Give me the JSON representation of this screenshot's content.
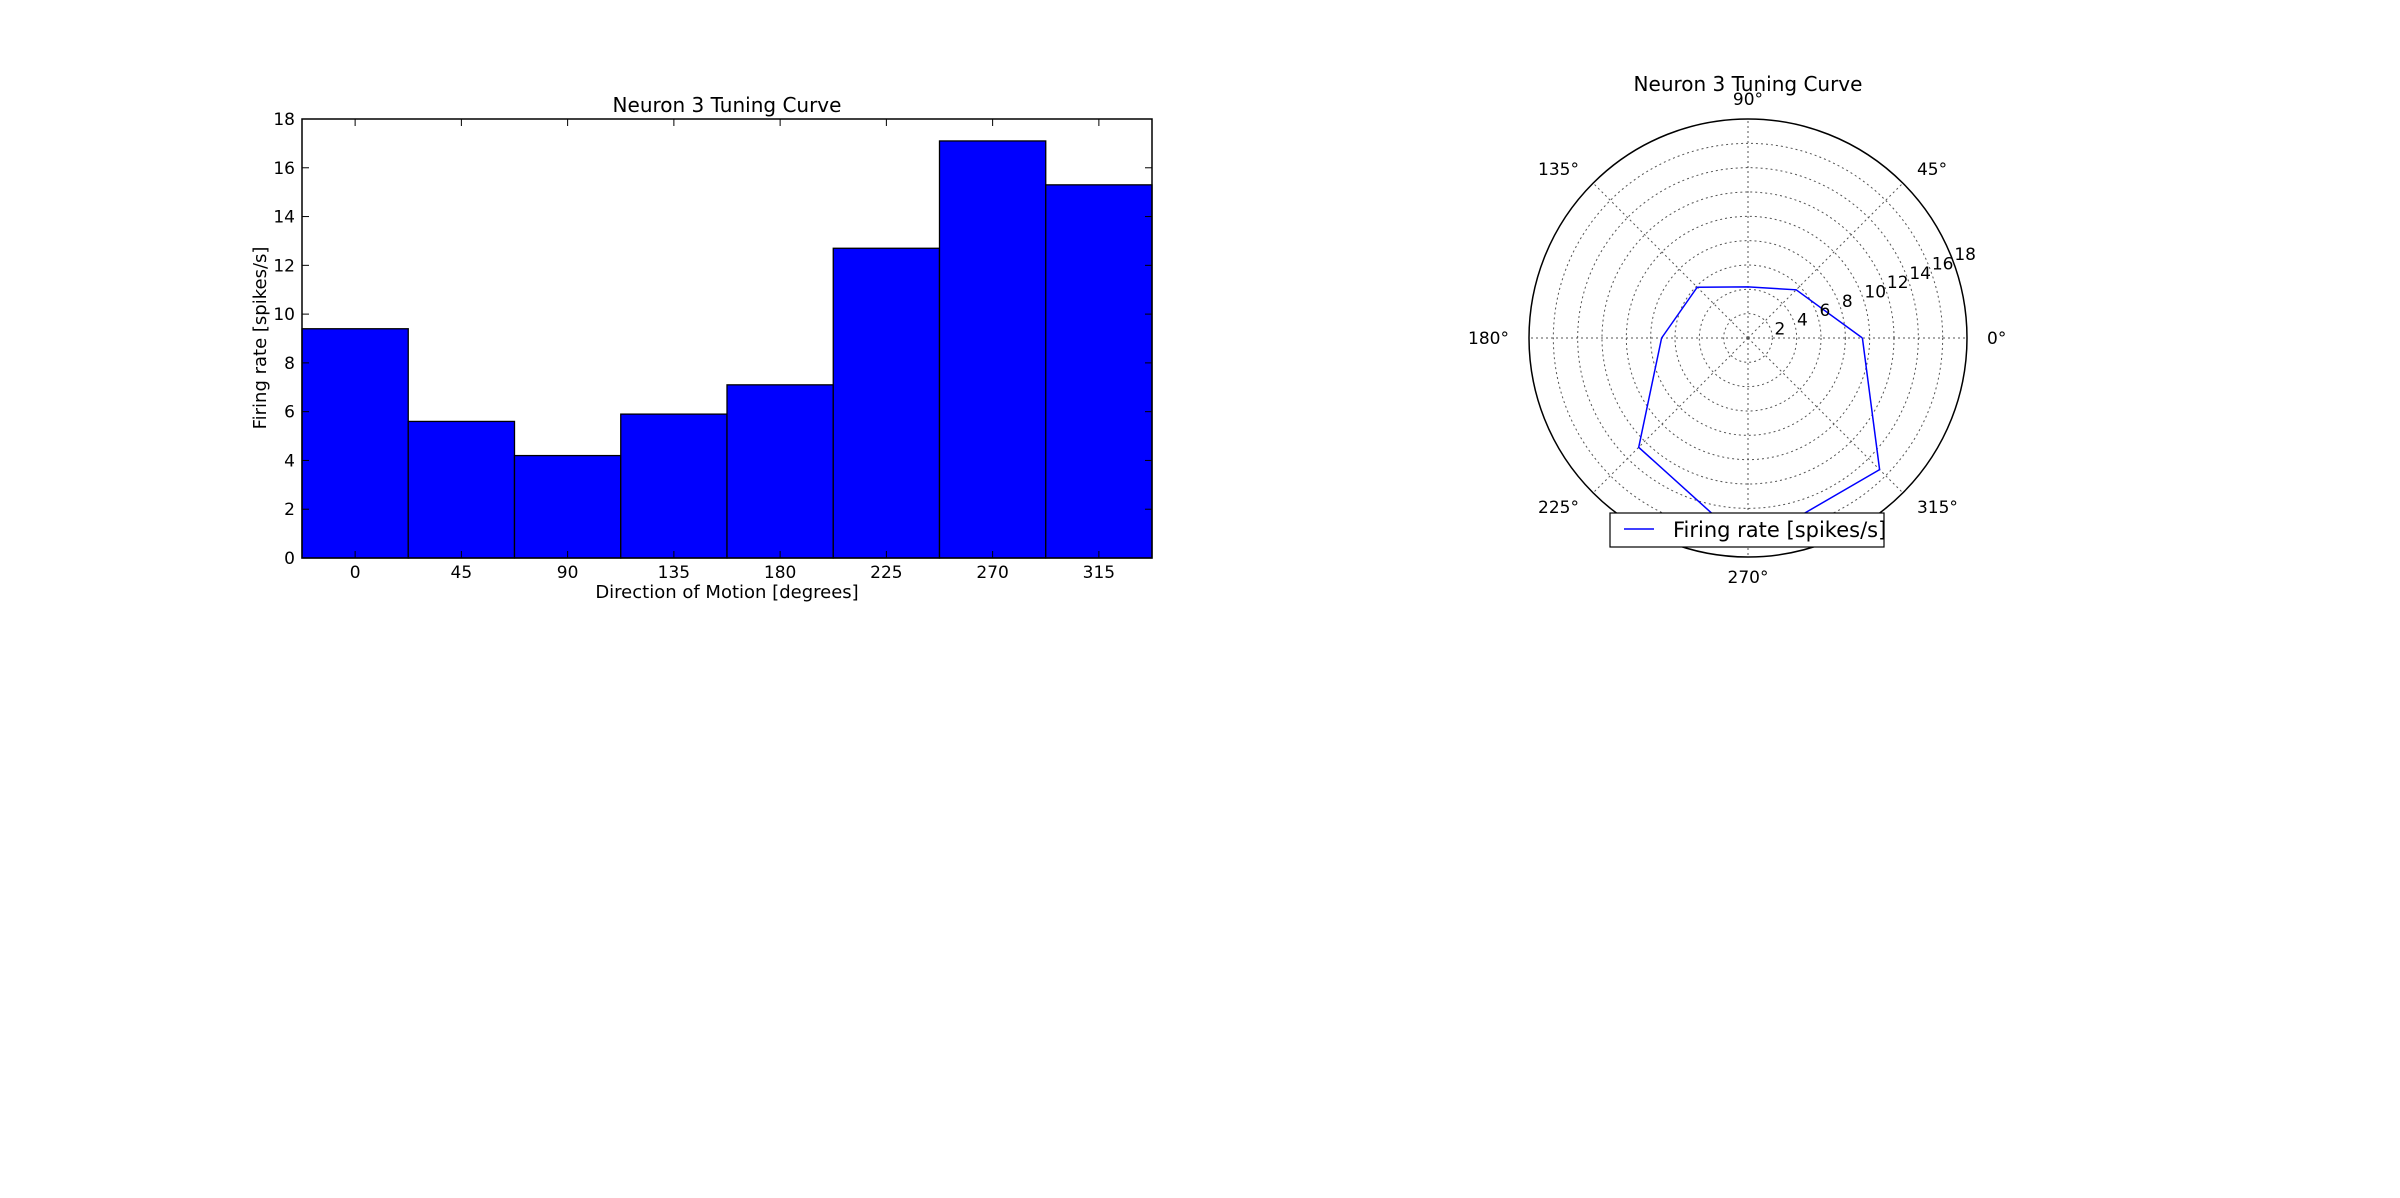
{
  "chart_data": [
    {
      "type": "bar",
      "title": "Neuron 3 Tuning Curve",
      "xlabel": "Direction of Motion [degrees]",
      "ylabel": "Firing rate [spikes/s]",
      "categories": [
        "0",
        "45",
        "90",
        "135",
        "180",
        "225",
        "270",
        "315"
      ],
      "values": [
        9.4,
        5.6,
        4.2,
        5.9,
        7.1,
        12.7,
        17.1,
        15.3
      ],
      "ylim": [
        0,
        18
      ],
      "yticks": [
        "0",
        "2",
        "4",
        "6",
        "8",
        "10",
        "12",
        "14",
        "16",
        "18"
      ],
      "bar_color": "#0000ff",
      "edge_color": "#000000",
      "grid": false
    },
    {
      "type": "line",
      "subtype": "polar",
      "title": "Neuron 3 Tuning Curve",
      "theta_deg": [
        0,
        45,
        90,
        135,
        180,
        225,
        270,
        315
      ],
      "values": [
        9.4,
        5.6,
        4.2,
        5.9,
        7.1,
        12.7,
        17.1,
        15.3
      ],
      "rlim": [
        0,
        18
      ],
      "rticks": [
        "2",
        "4",
        "6",
        "8",
        "10",
        "12",
        "14",
        "16",
        "18"
      ],
      "angle_labels": [
        "0°",
        "45°",
        "90°",
        "135°",
        "180°",
        "225°",
        "270°",
        "315°"
      ],
      "series": [
        {
          "name": "Firing rate [spikes/s]",
          "color": "#0000ff"
        }
      ],
      "legend": "bottom-center",
      "grid": true
    }
  ]
}
